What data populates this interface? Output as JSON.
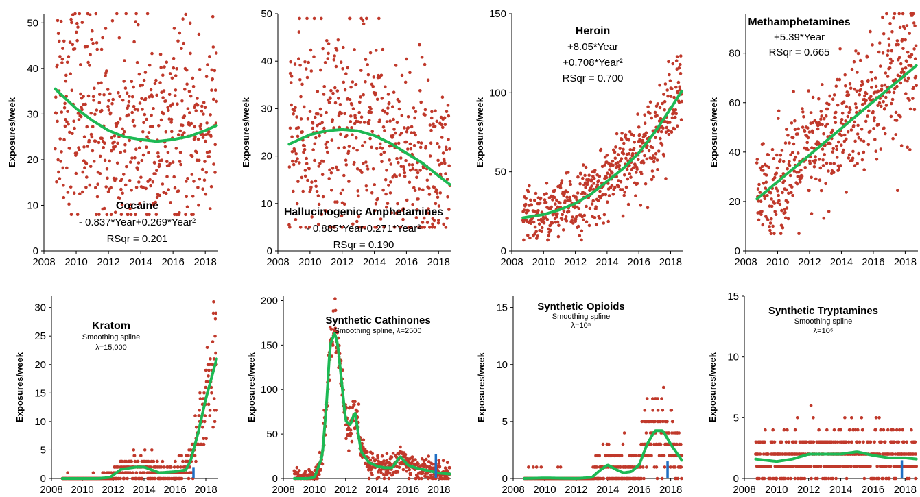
{
  "colors": {
    "points": "#c0392b",
    "fit": "#1db954",
    "marker": "#1f6fc4",
    "axis": "#000000"
  },
  "chart_data": [
    {
      "type": "scatter",
      "title": "Cocaine",
      "annotations": [
        "- 0.837*Year+0.269*Year²",
        "RSqr = 0.201"
      ],
      "ylabel": "Exposures/week",
      "xlim": [
        2008,
        2018.8
      ],
      "ylim": [
        0,
        52
      ],
      "xticks": [
        "2008",
        "2010",
        "2012",
        "2014",
        "2016",
        "2018"
      ],
      "yticks": [
        "0",
        "10",
        "20",
        "30",
        "40",
        "50"
      ],
      "fit": {
        "x": [
          2008.7,
          2010,
          2011,
          2012,
          2013,
          2014,
          2015,
          2016,
          2017,
          2018,
          2018.7
        ],
        "y": [
          35.5,
          31.2,
          28.6,
          26.4,
          25,
          24.4,
          24,
          24.4,
          25.1,
          26.4,
          27.5
        ]
      },
      "points": {
        "n": 520,
        "x_range": [
          2008.7,
          2018.7
        ],
        "y_spread": 7,
        "y_min": 8,
        "y_max": 52
      }
    },
    {
      "type": "scatter",
      "title": "Hallucinogenic Amphetamines",
      "annotations": [
        "- 0.885*Year-0.271*Year²",
        "RSqr = 0.190"
      ],
      "ylabel": "Exposures/week",
      "xlim": [
        2008,
        2018.8
      ],
      "ylim": [
        0,
        50
      ],
      "xticks": [
        "2008",
        "2010",
        "2012",
        "2014",
        "2016",
        "2018"
      ],
      "yticks": [
        "0",
        "10",
        "20",
        "30",
        "40",
        "50"
      ],
      "fit": {
        "x": [
          2008.7,
          2010,
          2011,
          2012,
          2013,
          2014,
          2015,
          2016,
          2017,
          2018,
          2018.7
        ],
        "y": [
          22.5,
          24.5,
          25.3,
          25.6,
          25.3,
          24.3,
          22.7,
          20.6,
          18.5,
          15.8,
          14
        ]
      },
      "points": {
        "n": 520,
        "x_range": [
          2008.7,
          2018.7
        ],
        "y_spread": 7,
        "y_min": 5,
        "y_max": 49
      }
    },
    {
      "type": "scatter",
      "title": "Heroin",
      "annotations": [
        "+8.05*Year",
        "+0.708*Year²",
        "RSqr = 0.700"
      ],
      "ylabel": "Exposures/week",
      "xlim": [
        2008,
        2018.8
      ],
      "ylim": [
        0,
        150
      ],
      "xticks": [
        "2008",
        "2010",
        "2012",
        "2014",
        "2016",
        "2018"
      ],
      "yticks": [
        "0",
        "50",
        "100",
        "150"
      ],
      "fit": {
        "x": [
          2008.7,
          2010,
          2011,
          2012,
          2013,
          2014,
          2015,
          2016,
          2017,
          2018,
          2018.7
        ],
        "y": [
          21,
          23,
          26,
          30,
          36,
          44,
          52,
          62,
          75,
          90,
          101
        ]
      },
      "points": {
        "n": 520,
        "x_range": [
          2008.7,
          2018.7
        ],
        "y_spread": 8,
        "y_min": 7,
        "y_max": 149
      }
    },
    {
      "type": "scatter",
      "title": "Methamphetamines",
      "annotations": [
        "+5.39*Year",
        "RSqr = 0.665"
      ],
      "ylabel": "Exposures/week",
      "xlim": [
        2008,
        2018.8
      ],
      "ylim": [
        0,
        96
      ],
      "xticks": [
        "2008",
        "2010",
        "2012",
        "2014",
        "2016",
        "2018"
      ],
      "yticks": [
        "0",
        "20",
        "40",
        "60",
        "80"
      ],
      "fit": {
        "x": [
          2008.7,
          2018.7
        ],
        "y": [
          21,
          75
        ]
      },
      "points": {
        "n": 520,
        "x_range": [
          2008.7,
          2018.7
        ],
        "y_spread": 8,
        "y_min": 7,
        "y_max": 96
      }
    },
    {
      "type": "scatter",
      "title": "Kratom",
      "annotations": [
        "Smoothing spline",
        "λ=15,000"
      ],
      "ylabel": "Exposures/week",
      "xlim": [
        2008,
        2018.8
      ],
      "ylim": [
        0,
        32
      ],
      "xticks": [
        "2008",
        "2010",
        "2012",
        "2014",
        "2016",
        "2018"
      ],
      "yticks": [
        "0",
        "5",
        "10",
        "15",
        "20",
        "25",
        "30"
      ],
      "fit": {
        "x": [
          2008.7,
          2010,
          2011,
          2011.8,
          2012.5,
          2013.5,
          2014,
          2014.5,
          2015,
          2016,
          2016.7,
          2017,
          2017.5,
          2018,
          2018.7
        ],
        "y": [
          0,
          0,
          0,
          0.2,
          1.6,
          2,
          2,
          1.5,
          1,
          1.2,
          1.5,
          3,
          8,
          14,
          21
        ]
      },
      "marker": {
        "x": 2017.2,
        "y_top": 2
      },
      "points": {
        "n": 520,
        "x_range": [
          2008.7,
          2018.7
        ],
        "y_spread": 1.2,
        "y_min": 0,
        "y_max": 31
      }
    },
    {
      "type": "scatter",
      "title": "Synthetic Cathinones",
      "annotations": [
        "Smoothing spline, λ=2500"
      ],
      "ylabel": "Exposures/week",
      "xlim": [
        2008,
        2018.8
      ],
      "ylim": [
        0,
        205
      ],
      "xticks": [
        "2008",
        "2010",
        "2012",
        "2014",
        "2016",
        "2018"
      ],
      "yticks": [
        "0",
        "50",
        "100",
        "150",
        "200"
      ],
      "fit": {
        "x": [
          2008.7,
          2009.5,
          2010,
          2010.5,
          2010.8,
          2011,
          2011.3,
          2011.5,
          2011.8,
          2012,
          2012.3,
          2012.6,
          2013,
          2013.5,
          2014,
          2014.5,
          2015,
          2015.5,
          2016,
          2016.5,
          2017,
          2017.5,
          2018,
          2018.7
        ],
        "y": [
          0,
          0,
          1,
          25,
          90,
          150,
          164,
          150,
          100,
          65,
          60,
          75,
          30,
          18,
          14,
          12,
          12,
          25,
          15,
          12,
          10,
          8,
          6,
          5
        ]
      },
      "marker": {
        "x": 2017.8,
        "y_top": 27
      },
      "points": {
        "n": 520,
        "x_range": [
          2008.7,
          2018.7
        ],
        "y_spread": 8,
        "y_min": 0,
        "y_max": 203
      }
    },
    {
      "type": "scatter",
      "title": "Synthetic Opioids",
      "annotations": [
        "Smoothing spline",
        "λ=10⁵"
      ],
      "ylabel": "Exposures/week",
      "xlim": [
        2008,
        2018.8
      ],
      "ylim": [
        0,
        16
      ],
      "xticks": [
        "2008",
        "2010",
        "2012",
        "2014",
        "2016",
        "2018"
      ],
      "yticks": [
        "0",
        "5",
        "10",
        "15"
      ],
      "fit": {
        "x": [
          2008.7,
          2010,
          2012,
          2013,
          2013.5,
          2014,
          2014.5,
          2015,
          2015.5,
          2016,
          2016.5,
          2017,
          2017.5,
          2018,
          2018.7
        ],
        "y": [
          0,
          0.05,
          0,
          0.1,
          0.7,
          1.2,
          0.8,
          0.5,
          0.6,
          1.2,
          3,
          4.2,
          4.2,
          3,
          1.6
        ]
      },
      "marker": {
        "x": 2017.8,
        "y_top": 1.5
      },
      "points": {
        "n": 520,
        "x_range": [
          2008.7,
          2018.7
        ],
        "y_spread": 1.2,
        "y_min": 0,
        "y_max": 13
      }
    },
    {
      "type": "scatter",
      "title": "Synthetic Tryptamines",
      "annotations": [
        "Smoothing spline",
        "λ=10⁶"
      ],
      "ylabel": "Exposures/week",
      "xlim": [
        2008,
        2018.8
      ],
      "ylim": [
        0,
        15
      ],
      "xticks": [
        "2008",
        "2010",
        "2012",
        "2014",
        "2016",
        "2018"
      ],
      "yticks": [
        "0",
        "5",
        "10",
        "15"
      ],
      "fit": {
        "x": [
          2008.7,
          2010,
          2011,
          2012,
          2013,
          2014,
          2015,
          2016,
          2017,
          2018,
          2018.7
        ],
        "y": [
          1.6,
          1.4,
          1.6,
          2,
          2,
          2,
          2.2,
          1.9,
          1.7,
          1.7,
          1.6
        ]
      },
      "marker": {
        "x": 2017.8,
        "y_top": 1.5
      },
      "points": {
        "n": 520,
        "x_range": [
          2008.7,
          2018.7
        ],
        "y_spread": 1.1,
        "y_min": 0,
        "y_max": 10
      }
    }
  ]
}
